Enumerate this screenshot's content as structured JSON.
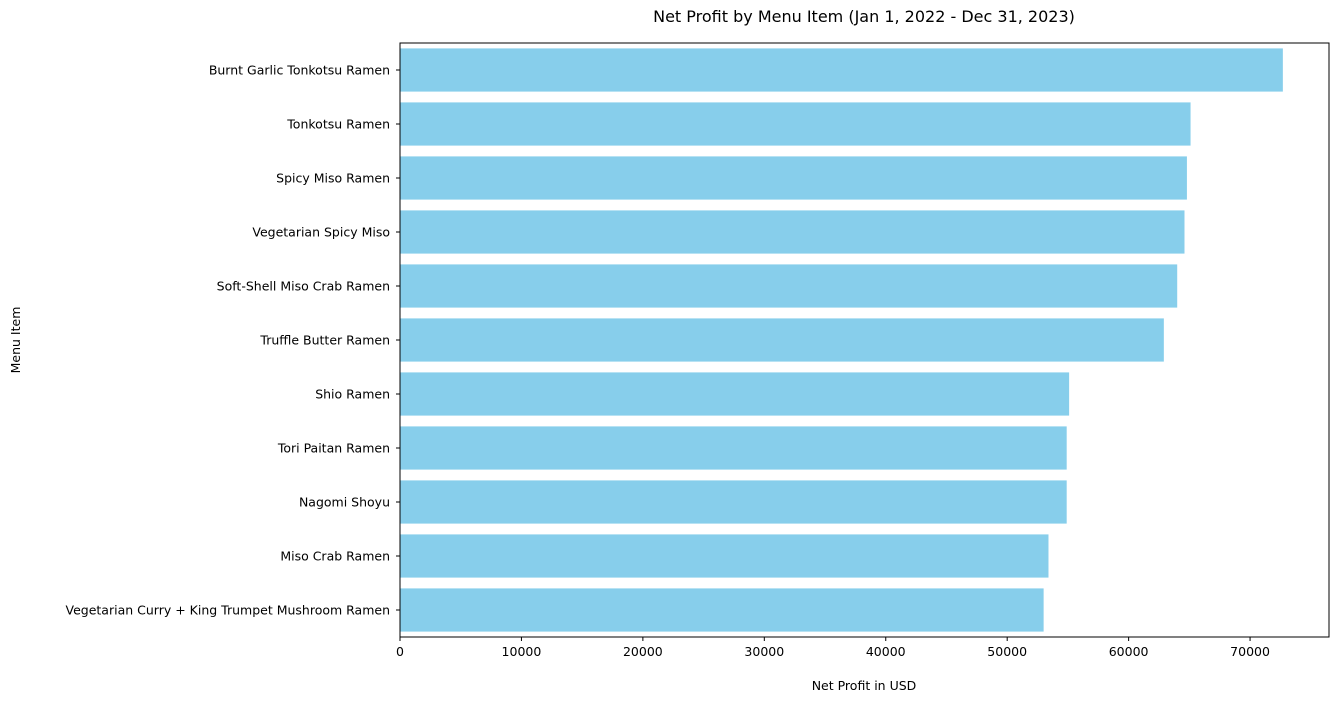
{
  "chart_data": {
    "type": "bar",
    "orientation": "horizontal",
    "title": "Net Profit by Menu Item (Jan 1, 2022 - Dec 31, 2023)",
    "xlabel": "Net Profit in USD",
    "ylabel": "Menu Item",
    "xlim": [
      0,
      76500
    ],
    "xticks": [
      0,
      10000,
      20000,
      30000,
      40000,
      50000,
      60000,
      70000
    ],
    "grid": false,
    "bar_color": "#87ceeb",
    "categories": [
      "Burnt Garlic Tonkotsu Ramen",
      "Tonkotsu Ramen",
      "Spicy Miso Ramen",
      "Vegetarian Spicy Miso",
      "Soft-Shell Miso Crab Ramen",
      "Truffle Butter Ramen",
      "Shio Ramen",
      "Tori Paitan Ramen",
      "Nagomi Shoyu",
      "Miso Crab Ramen",
      "Vegetarian Curry + King Trumpet Mushroom Ramen"
    ],
    "values": [
      72700,
      65100,
      64800,
      64600,
      64000,
      62900,
      55100,
      54900,
      54900,
      53400,
      53000
    ]
  }
}
